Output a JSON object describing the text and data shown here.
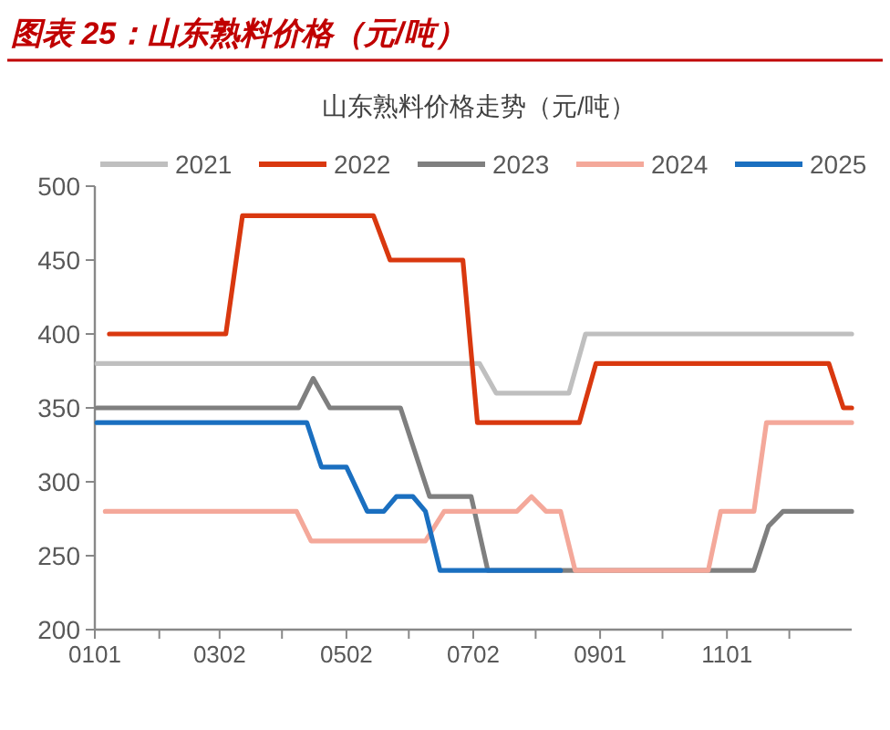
{
  "chart_data": {
    "type": "line",
    "title": "图表 25：山东熟料价格（元/吨）",
    "subtitle": "山东熟料价格走势（元/吨）",
    "xlim": [
      "--01-01",
      "--12-31"
    ],
    "ylim": [
      200,
      500
    ],
    "yticks": [
      200,
      250,
      300,
      350,
      400,
      450,
      500
    ],
    "xticks": [
      {
        "value": "--01-01",
        "label": "0101"
      },
      {
        "value": "--02-01",
        "label": null
      },
      {
        "value": "--03-02",
        "label": "0302"
      },
      {
        "value": "--04-01",
        "label": null
      },
      {
        "value": "--05-02",
        "label": "0502"
      },
      {
        "value": "--06-01",
        "label": null
      },
      {
        "value": "--07-02",
        "label": "0702"
      },
      {
        "value": "--08-01",
        "label": null
      },
      {
        "value": "--09-01",
        "label": "0901"
      },
      {
        "value": "--10-01",
        "label": null
      },
      {
        "value": "--11-01",
        "label": "1101"
      },
      {
        "value": "--12-01",
        "label": null
      }
    ],
    "legend": "top",
    "grid": false,
    "marker": "none",
    "line_style": "solid",
    "series": [
      {
        "name": "2021",
        "color": "#bfbfbf",
        "x": [
          "--01-02",
          "--07-05",
          "--07-13",
          "--08-17",
          "--08-25",
          "--12-31"
        ],
        "values": [
          380,
          380,
          360,
          360,
          400,
          400
        ]
      },
      {
        "name": "2022",
        "color": "#d9380f",
        "x": [
          "--01-08",
          "--03-05",
          "--03-13",
          "--05-15",
          "--05-23",
          "--06-27",
          "--07-04",
          "--08-22",
          "--08-30",
          "--12-20",
          "--12-27",
          "--12-31"
        ],
        "values": [
          400,
          400,
          480,
          480,
          450,
          450,
          340,
          340,
          380,
          380,
          350,
          350
        ]
      },
      {
        "name": "2023",
        "color": "#7f7f7f",
        "x": [
          "--01-02",
          "--04-09",
          "--04-16",
          "--04-24",
          "--05-28",
          "--06-11",
          "--07-01",
          "--07-09",
          "--11-14",
          "--11-21",
          "--11-28",
          "--12-31"
        ],
        "values": [
          350,
          350,
          370,
          350,
          350,
          290,
          290,
          240,
          240,
          270,
          280,
          280
        ]
      },
      {
        "name": "2024",
        "color": "#f4a89a",
        "x": [
          "--01-06",
          "--04-08",
          "--04-15",
          "--06-09",
          "--06-18",
          "--07-23",
          "--07-30",
          "--08-06",
          "--08-13",
          "--08-20",
          "--10-23",
          "--10-29",
          "--11-14",
          "--11-20",
          "--12-31"
        ],
        "values": [
          280,
          280,
          260,
          260,
          280,
          280,
          290,
          280,
          280,
          240,
          240,
          280,
          280,
          340,
          340
        ]
      },
      {
        "name": "2025",
        "color": "#1a6fc0",
        "x": [
          "--01-02",
          "--04-13",
          "--04-20",
          "--05-02",
          "--05-12",
          "--05-20",
          "--05-26",
          "--06-03",
          "--06-09",
          "--06-16",
          "--08-13"
        ],
        "values": [
          340,
          340,
          310,
          310,
          280,
          280,
          290,
          290,
          280,
          240,
          240
        ]
      }
    ]
  }
}
